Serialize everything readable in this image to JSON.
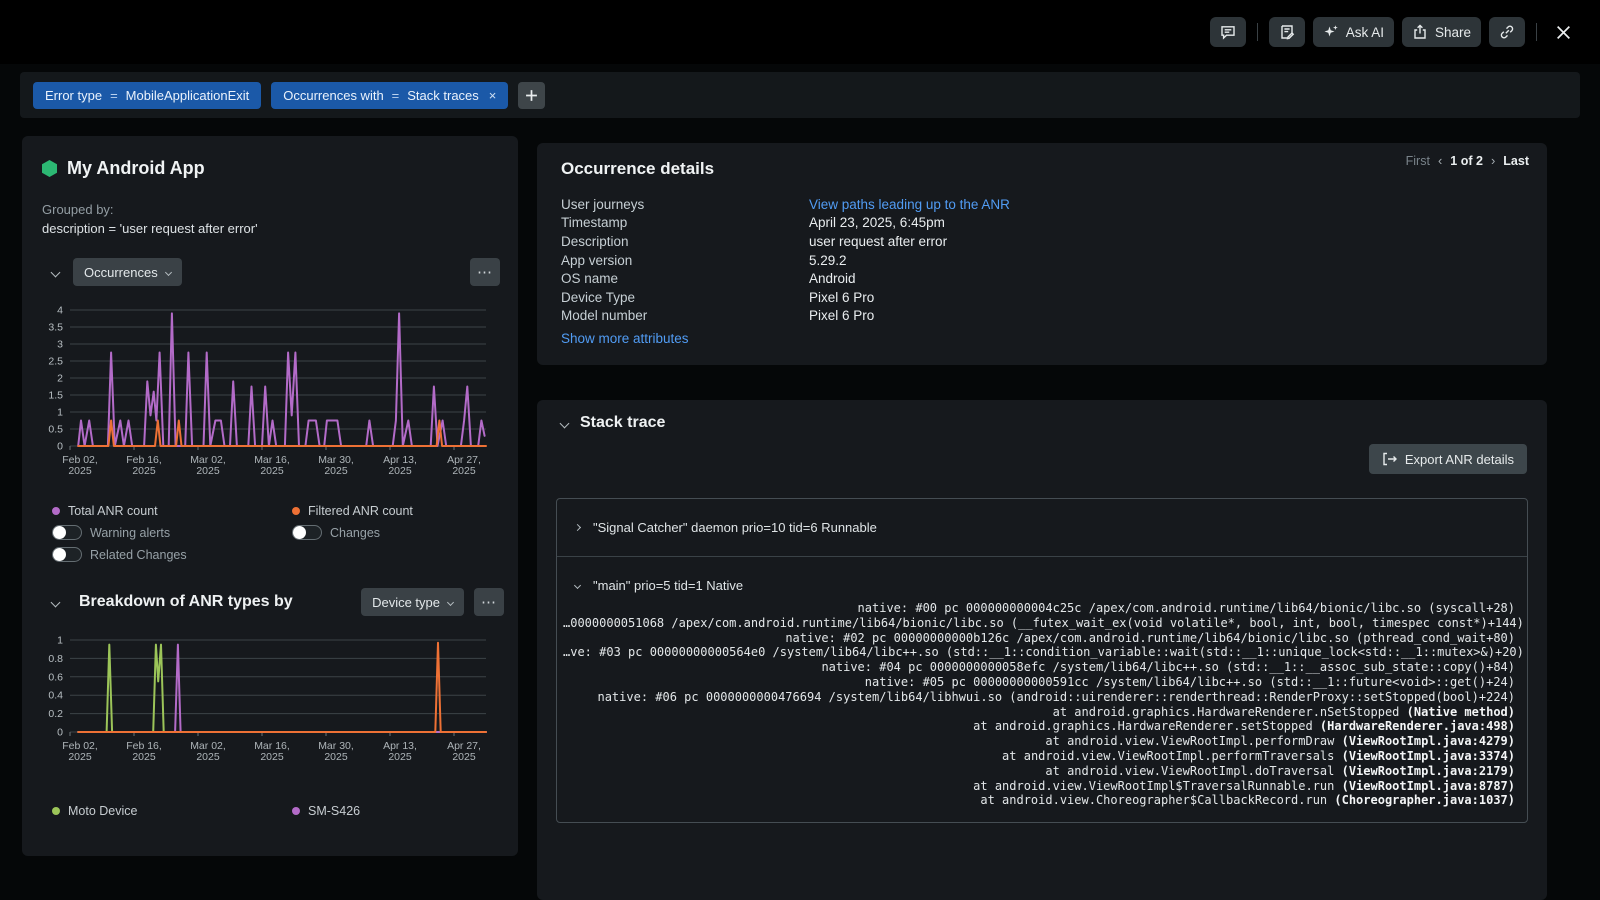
{
  "topbar": {
    "ask_ai_label": "Ask AI",
    "share_label": "Share"
  },
  "filter_bar": {
    "pills": [
      {
        "field": "Error type",
        "op": "=",
        "value": "MobileApplicationExit",
        "removable": false
      },
      {
        "field": "Occurrences with",
        "op": "=",
        "value": "Stack traces",
        "removable": true
      }
    ]
  },
  "entity_panel": {
    "title": "My Android App",
    "grouped_by_label": "Grouped by:",
    "grouped_by_value": "description = 'user request after error'",
    "metric_dropdown": "Occurrences",
    "breakdown_title": "Breakdown of ANR types by",
    "breakdown_dropdown": "Device type",
    "legend_columns": [
      {
        "x": 0,
        "series": "Total ANR count",
        "color": "#b36bc8",
        "toggles": [
          "Warning alerts",
          "Related Changes"
        ]
      },
      {
        "x": 240,
        "series": "Filtered ANR count",
        "color": "#ee7135",
        "toggles": [
          "Changes"
        ]
      }
    ],
    "breakdown_legend": [
      {
        "x": 0,
        "label": "Moto Device",
        "color": "#9cc559"
      },
      {
        "x": 240,
        "label": "SM-S426",
        "color": "#b36bc8"
      }
    ]
  },
  "occurrence_details": {
    "title": "Occurrence details",
    "pagination": {
      "first": "First",
      "prev": "‹",
      "page": "1 of 2",
      "next": "›",
      "last": "Last"
    },
    "rows": [
      {
        "label": "User journeys",
        "value": "View paths leading up to the ANR",
        "is_link": true
      },
      {
        "label": "Timestamp",
        "value": "April 23, 2025, 6:45pm",
        "is_link": false
      },
      {
        "label": "Description",
        "value": "user request after error",
        "is_link": false
      },
      {
        "label": "App version",
        "value": "5.29.2",
        "is_link": false
      },
      {
        "label": "OS name",
        "value": "Android",
        "is_link": false
      },
      {
        "label": "Device Type",
        "value": "Pixel 6 Pro",
        "is_link": false
      },
      {
        "label": "Model number",
        "value": "Pixel 6 Pro",
        "is_link": false
      }
    ],
    "show_more": "Show more attributes"
  },
  "stack_trace": {
    "title": "Stack trace",
    "export_button": "Export ANR details",
    "threads": [
      {
        "expanded": false,
        "label": "\"Signal Catcher\" daemon prio=10 tid=6 Runnable",
        "frames": []
      },
      {
        "expanded": true,
        "label": "\"main\" prio=5 tid=1 Native",
        "frames": [
          {
            "t": "native: #00 pc 000000000004c25c /apex/com.android.runtime/lib64/bionic/libc.so (syscall+28)",
            "b": ""
          },
          {
            "t": "…0000000051068 /apex/com.android.runtime/lib64/bionic/libc.so (__futex_wait_ex(void volatile*, bool, int, bool, timespec const*)+144)",
            "b": ""
          },
          {
            "t": "native: #02 pc 00000000000b126c /apex/com.android.runtime/lib64/bionic/libc.so (pthread_cond_wait+80)",
            "b": ""
          },
          {
            "t": "…ve: #03 pc 00000000000564e0 /system/lib64/libc++.so (std::__1::condition_variable::wait(std::__1::unique_lock<std::__1::mutex>&)+20)",
            "b": ""
          },
          {
            "t": "native: #04 pc 0000000000058efc /system/lib64/libc++.so (std::__1::__assoc_sub_state::copy()+84)",
            "b": ""
          },
          {
            "t": "native: #05 pc 00000000000591cc /system/lib64/libc++.so (std::__1::future<void>::get()+24)",
            "b": ""
          },
          {
            "t": "native: #06 pc 0000000000476694 /system/lib64/libhwui.so (android::uirenderer::renderthread::RenderProxy::setStopped(bool)+224)",
            "b": ""
          },
          {
            "t": "at android.graphics.HardwareRenderer.nSetStopped ",
            "b": "(Native method)"
          },
          {
            "t": "at android.graphics.HardwareRenderer.setStopped ",
            "b": "(HardwareRenderer.java:498)"
          },
          {
            "t": "at android.view.ViewRootImpl.performDraw ",
            "b": "(ViewRootImpl.java:4279)"
          },
          {
            "t": "at android.view.ViewRootImpl.performTraversals ",
            "b": "(ViewRootImpl.java:3374)"
          },
          {
            "t": "at android.view.ViewRootImpl.doTraversal ",
            "b": "(ViewRootImpl.java:2179)"
          },
          {
            "t": "at android.view.ViewRootImpl$TraversalRunnable.run ",
            "b": "(ViewRootImpl.java:8787)"
          },
          {
            "t": "at android.view.Choreographer$CallbackRecord.run ",
            "b": "(Choreographer.java:1037)"
          }
        ]
      }
    ]
  },
  "chart_data": [
    {
      "type": "line",
      "title": "Occurrences over time",
      "x_domain_days": [
        0,
        91
      ],
      "x_ticks": [
        {
          "pos": 0,
          "line1": "Feb 02,",
          "line2": "2025"
        },
        {
          "pos": 14,
          "line1": "Feb 16,",
          "line2": "2025"
        },
        {
          "pos": 28,
          "line1": "Mar 02,",
          "line2": "2025"
        },
        {
          "pos": 42,
          "line1": "Mar 16,",
          "line2": "2025"
        },
        {
          "pos": 56,
          "line1": "Mar 30,",
          "line2": "2025"
        },
        {
          "pos": 70,
          "line1": "Apr 13,",
          "line2": "2025"
        },
        {
          "pos": 84,
          "line1": "Apr 27,",
          "line2": "2025"
        }
      ],
      "ylim": [
        0,
        4
      ],
      "y_ticks": [
        0,
        0.5,
        1,
        1.5,
        2,
        2.5,
        3,
        3.5,
        4
      ],
      "grid": true,
      "legend_position": "bottom",
      "series": [
        {
          "name": "Total ANR count",
          "color": "#b36bc8",
          "points": [
            [
              1.8,
              0
            ],
            [
              2.4,
              0.75
            ],
            [
              3.2,
              0
            ],
            [
              4.2,
              0.75
            ],
            [
              5,
              0
            ],
            [
              8.3,
              0
            ],
            [
              9,
              2.75
            ],
            [
              9.8,
              0
            ],
            [
              11,
              0.75
            ],
            [
              11.8,
              0
            ],
            [
              12.8,
              0.75
            ],
            [
              13.6,
              0
            ],
            [
              16.2,
              0
            ],
            [
              16.9,
              1.9
            ],
            [
              17.6,
              0.9
            ],
            [
              18.3,
              1.6
            ],
            [
              18.9,
              0.75
            ],
            [
              19.6,
              2.75
            ],
            [
              20.4,
              0
            ],
            [
              21.6,
              0
            ],
            [
              22.3,
              3.9
            ],
            [
              23.1,
              0
            ],
            [
              25.2,
              0
            ],
            [
              25.9,
              2.75
            ],
            [
              26.7,
              0
            ],
            [
              29.2,
              0
            ],
            [
              29.9,
              2.75
            ],
            [
              30.7,
              0
            ],
            [
              31.8,
              0.75
            ],
            [
              33,
              0.75
            ],
            [
              33.8,
              0
            ],
            [
              35,
              0
            ],
            [
              35.7,
              1.9
            ],
            [
              36.5,
              0
            ],
            [
              39,
              0
            ],
            [
              39.7,
              1.75
            ],
            [
              40.5,
              0
            ],
            [
              42,
              0
            ],
            [
              42.7,
              1.75
            ],
            [
              43.5,
              0
            ],
            [
              44.3,
              0.75
            ],
            [
              45.1,
              0
            ],
            [
              47,
              0
            ],
            [
              47.7,
              2.75
            ],
            [
              48.5,
              0.9
            ],
            [
              49.3,
              2.75
            ],
            [
              50.1,
              0
            ],
            [
              51.5,
              0
            ],
            [
              52.2,
              0.75
            ],
            [
              53.8,
              0.75
            ],
            [
              54.6,
              0
            ],
            [
              55.6,
              0
            ],
            [
              56.2,
              0.75
            ],
            [
              58.5,
              0.75
            ],
            [
              59.3,
              0
            ],
            [
              64.8,
              0
            ],
            [
              65.5,
              0.75
            ],
            [
              66.3,
              0
            ],
            [
              70.6,
              0
            ],
            [
              71.3,
              0.75
            ],
            [
              72,
              3.9
            ],
            [
              72.8,
              0
            ],
            [
              74,
              0.75
            ],
            [
              74.8,
              0
            ],
            [
              78.9,
              0
            ],
            [
              79.6,
              1.75
            ],
            [
              80.4,
              0
            ],
            [
              81.5,
              0.75
            ],
            [
              82.3,
              0
            ],
            [
              85.5,
              0
            ],
            [
              86.2,
              0.75
            ],
            [
              86.9,
              1.75
            ],
            [
              87.7,
              0
            ],
            [
              89.3,
              0
            ],
            [
              90,
              0.75
            ],
            [
              90.7,
              0.3
            ]
          ]
        },
        {
          "name": "Filtered ANR count",
          "color": "#ee7135",
          "points": [
            [
              1.8,
              0
            ],
            [
              8.4,
              0
            ],
            [
              9,
              0.75
            ],
            [
              9.6,
              0
            ],
            [
              18.6,
              0
            ],
            [
              19.2,
              0.75
            ],
            [
              19.8,
              0
            ],
            [
              23.2,
              0
            ],
            [
              23.8,
              0.75
            ],
            [
              24.4,
              0
            ],
            [
              80.2,
              0
            ],
            [
              80.8,
              0.75
            ],
            [
              81.4,
              0
            ],
            [
              91,
              0
            ]
          ]
        }
      ]
    },
    {
      "type": "line",
      "title": "Breakdown of ANR types by Device type",
      "x_domain_days": [
        0,
        91
      ],
      "x_ticks": [
        {
          "pos": 0,
          "line1": "Feb 02,",
          "line2": "2025"
        },
        {
          "pos": 14,
          "line1": "Feb 16,",
          "line2": "2025"
        },
        {
          "pos": 28,
          "line1": "Mar 02,",
          "line2": "2025"
        },
        {
          "pos": 42,
          "line1": "Mar 16,",
          "line2": "2025"
        },
        {
          "pos": 56,
          "line1": "Mar 30,",
          "line2": "2025"
        },
        {
          "pos": 70,
          "line1": "Apr 13,",
          "line2": "2025"
        },
        {
          "pos": 84,
          "line1": "Apr 27,",
          "line2": "2025"
        }
      ],
      "ylim": [
        0,
        1
      ],
      "y_ticks": [
        0,
        0.2,
        0.4,
        0.6,
        0.8,
        1
      ],
      "grid": true,
      "legend_position": "bottom",
      "series": [
        {
          "name": "Moto Device",
          "color": "#9cc559",
          "points": [
            [
              1.8,
              0
            ],
            [
              8,
              0
            ],
            [
              8.6,
              0.95
            ],
            [
              9.2,
              0
            ],
            [
              18.2,
              0
            ],
            [
              18.8,
              0.95
            ],
            [
              19.3,
              0.55
            ],
            [
              19.9,
              0.95
            ],
            [
              20.5,
              0
            ],
            [
              91,
              0
            ]
          ]
        },
        {
          "name": "SM-S426",
          "color": "#b36bc8",
          "points": [
            [
              1.8,
              0
            ],
            [
              23,
              0
            ],
            [
              23.6,
              0.95
            ],
            [
              24.2,
              0
            ],
            [
              91,
              0
            ]
          ]
        },
        {
          "name": "",
          "color": "#ee7135",
          "points": [
            [
              1.8,
              0
            ],
            [
              79.9,
              0
            ],
            [
              80.5,
              0.97
            ],
            [
              81.1,
              0
            ],
            [
              91,
              0
            ]
          ]
        }
      ]
    }
  ],
  "colors": {
    "accent_blue": "#1b59a8",
    "link_blue": "#519cf4",
    "purple": "#b36bc8",
    "orange": "#ee7135",
    "green_line": "#9cc559",
    "entity_green": "#2cb873",
    "card_bg": "#16191d"
  }
}
